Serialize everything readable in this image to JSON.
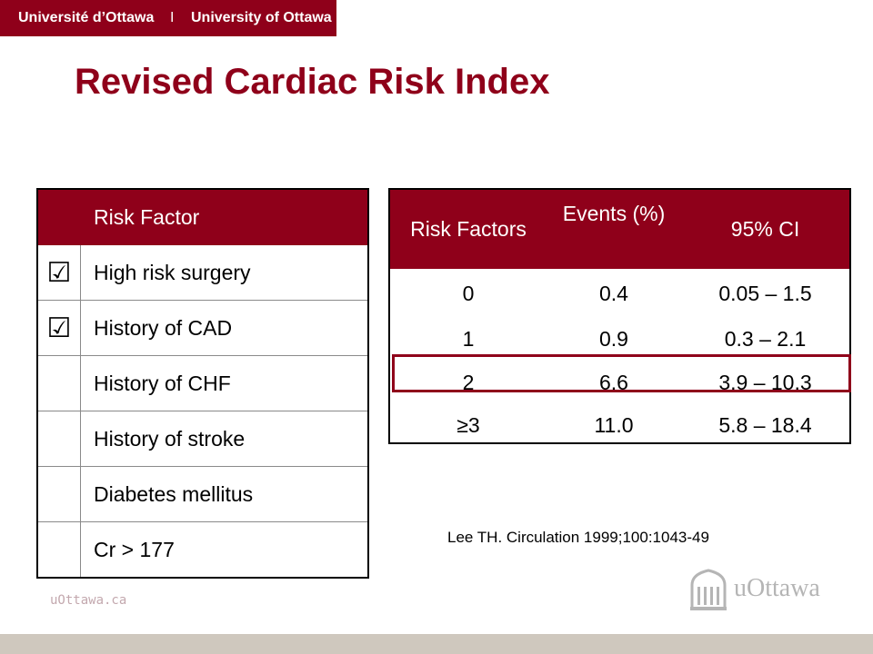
{
  "banner": {
    "french": "Université d’Ottawa",
    "separator": "I",
    "english": "University of Ottawa"
  },
  "title": "Revised Cardiac Risk Index",
  "risk_factor_table": {
    "header": "Risk Factor",
    "check_glyph": "☑",
    "rows": [
      {
        "label": "High risk surgery",
        "checked": true
      },
      {
        "label": "History of CAD",
        "checked": true
      },
      {
        "label": "History of CHF",
        "checked": false
      },
      {
        "label": "History of stroke",
        "checked": false
      },
      {
        "label": "Diabetes mellitus",
        "checked": false
      },
      {
        "label": "Cr > 177",
        "checked": false
      }
    ]
  },
  "events_table": {
    "headers": [
      "Risk Factors",
      "Events (%)",
      "95% CI"
    ],
    "rows": [
      [
        "0",
        "0.4",
        "0.05 – 1.5"
      ],
      [
        "1",
        "0.9",
        "0.3 – 2.1"
      ],
      [
        "2",
        "6.6",
        "3.9 – 10.3"
      ],
      [
        "≥3",
        "11.0",
        "5.8 – 18.4"
      ]
    ],
    "highlighted_row": 2
  },
  "citation": "Lee TH. Circulation 1999;100:1043-49",
  "footer": {
    "url": "uOttawa.ca",
    "logo_text": "uOttawa"
  },
  "colors": {
    "brand": "#8f001a",
    "bottom_bar": "#cfc8be"
  }
}
